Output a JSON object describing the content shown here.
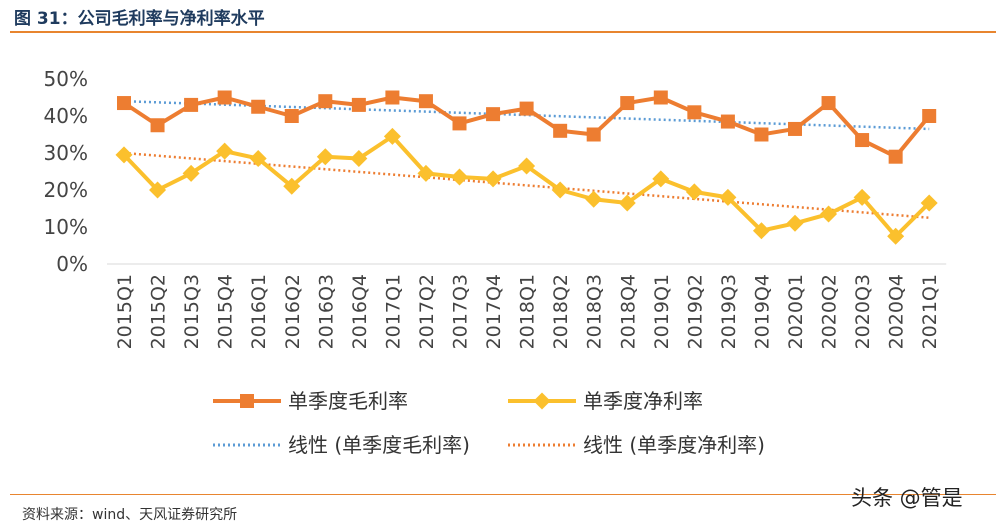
{
  "figure": {
    "title": "图 31：公司毛利率与净利率水平",
    "source": "资料来源：wind、天风证券研究所",
    "watermark": "头条 @管是"
  },
  "colors": {
    "gross": "#ed7d31",
    "net": "#fbc02d",
    "gross_trend": "#5b9bd5",
    "net_trend": "#ed7d31",
    "rule": "#e8852f"
  },
  "chart_data": {
    "type": "line",
    "title": "",
    "xlabel": "",
    "ylabel": "",
    "ylim": [
      0,
      50
    ],
    "yticks": [
      "0%",
      "10%",
      "20%",
      "30%",
      "40%",
      "50%"
    ],
    "grid": false,
    "legend_position": "bottom",
    "categories": [
      "2015Q1",
      "2015Q2",
      "2015Q3",
      "2015Q4",
      "2016Q1",
      "2016Q2",
      "2016Q3",
      "2016Q4",
      "2017Q1",
      "2017Q2",
      "2017Q3",
      "2017Q4",
      "2018Q1",
      "2018Q2",
      "2018Q3",
      "2018Q4",
      "2019Q1",
      "2019Q2",
      "2019Q3",
      "2019Q4",
      "2020Q1",
      "2020Q2",
      "2020Q3",
      "2020Q4",
      "2021Q1"
    ],
    "series": [
      {
        "name": "单季度毛利率",
        "marker": "square",
        "color": "#ed7d31",
        "values": [
          43.5,
          37.5,
          43,
          45,
          42.5,
          40,
          44,
          43,
          45,
          44,
          38,
          40.5,
          42,
          36,
          35,
          43.5,
          45,
          41,
          38.5,
          35,
          36.5,
          43.5,
          33.5,
          29,
          40
        ]
      },
      {
        "name": "单季度净利率",
        "marker": "diamond",
        "color": "#fbc02d",
        "values": [
          29.5,
          20,
          24.5,
          30.5,
          28.5,
          21,
          29,
          28.5,
          34.5,
          24.5,
          23.5,
          23,
          26.5,
          20,
          17.5,
          16.5,
          23,
          19.5,
          18,
          9,
          11,
          13.5,
          18,
          7.5,
          16.5
        ]
      }
    ],
    "trendlines": [
      {
        "name": "线性 (单季度毛利率)",
        "color": "#5b9bd5",
        "start": 44,
        "end": 36.5
      },
      {
        "name": "线性 (单季度净利率)",
        "color": "#ed7d31",
        "start": 30,
        "end": 12.5
      }
    ]
  }
}
